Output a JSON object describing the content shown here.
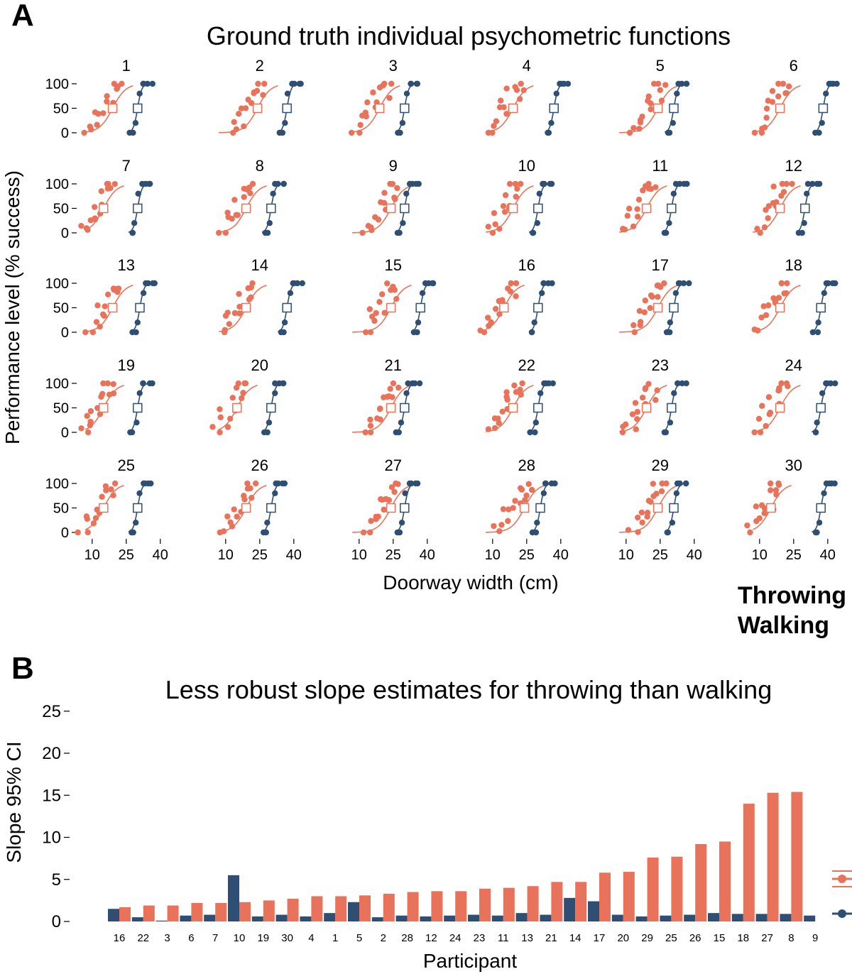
{
  "panel_a": {
    "letter": "A",
    "title": "Ground truth individual psychometric functions",
    "ylabel": "Performance level (% success)",
    "xlabel": "Doorway width (cm)",
    "x_ticks": [
      "10",
      "25",
      "40"
    ],
    "y_ticks": [
      "0",
      "50",
      "100"
    ],
    "participants": [
      "1",
      "2",
      "3",
      "4",
      "5",
      "6",
      "7",
      "8",
      "9",
      "10",
      "11",
      "12",
      "13",
      "14",
      "15",
      "16",
      "17",
      "18",
      "19",
      "20",
      "21",
      "22",
      "23",
      "24",
      "25",
      "26",
      "27",
      "28",
      "29",
      "30"
    ]
  },
  "legend": {
    "throwing": "Throwing",
    "walking": "Walking"
  },
  "colors": {
    "throwing": "#e8735a",
    "walking": "#2e4f73"
  },
  "panel_b": {
    "letter": "B",
    "title": "Less robust slope estimates for throwing than walking",
    "ylabel": "Slope 95% CI",
    "xlabel": "Participant",
    "y_ticks": [
      "0",
      "5",
      "10",
      "15",
      "20",
      "25"
    ]
  },
  "chart_data": [
    {
      "type": "scatter",
      "title": "Ground truth individual psychometric functions",
      "xlabel": "Doorway width (cm)",
      "ylabel": "Performance level (% success)",
      "xlim": [
        6,
        45
      ],
      "ylim": [
        0,
        100
      ],
      "x_ticks": [
        10,
        25,
        40
      ],
      "y_ticks": [
        0,
        50,
        100
      ],
      "series": [
        "Throwing",
        "Walking"
      ],
      "thresholds_50pct": [
        {
          "participant": "1",
          "throwing": 19,
          "walking": 30
        },
        {
          "participant": "2",
          "throwing": 24,
          "walking": 37
        },
        {
          "participant": "3",
          "throwing": 19,
          "walking": 30
        },
        {
          "participant": "4",
          "throwing": 19,
          "walking": 37
        },
        {
          "participant": "5",
          "throwing": 24,
          "walking": 31
        },
        {
          "participant": "6",
          "throwing": 19,
          "walking": 38
        },
        {
          "participant": "7",
          "throwing": 15,
          "walking": 30
        },
        {
          "participant": "8",
          "throwing": 19,
          "walking": 30
        },
        {
          "participant": "9",
          "throwing": 24,
          "walking": 30
        },
        {
          "participant": "10",
          "throwing": 19,
          "walking": 30
        },
        {
          "participant": "11",
          "throwing": 19,
          "walking": 30
        },
        {
          "participant": "12",
          "throwing": 19,
          "walking": 30
        },
        {
          "participant": "13",
          "throwing": 19,
          "walking": 31
        },
        {
          "participant": "14",
          "throwing": 19,
          "walking": 37
        },
        {
          "participant": "15",
          "throwing": 24,
          "walking": 37
        },
        {
          "participant": "16",
          "throwing": 15,
          "walking": 30
        },
        {
          "participant": "17",
          "throwing": 24,
          "walking": 31
        },
        {
          "participant": "18",
          "throwing": 19,
          "walking": 37
        },
        {
          "participant": "19",
          "throwing": 15,
          "walking": 30
        },
        {
          "participant": "20",
          "throwing": 15,
          "walking": 30
        },
        {
          "participant": "21",
          "throwing": 24,
          "walking": 30
        },
        {
          "participant": "22",
          "throwing": 19,
          "walking": 30
        },
        {
          "participant": "23",
          "throwing": 19,
          "walking": 30
        },
        {
          "participant": "24",
          "throwing": 19,
          "walking": 37
        },
        {
          "participant": "25",
          "throwing": 15,
          "walking": 30
        },
        {
          "participant": "26",
          "throwing": 19,
          "walking": 30
        },
        {
          "participant": "27",
          "throwing": 24,
          "walking": 30
        },
        {
          "participant": "28",
          "throwing": 24,
          "walking": 31
        },
        {
          "participant": "29",
          "throwing": 24,
          "walking": 31
        },
        {
          "participant": "30",
          "throwing": 15,
          "walking": 37
        }
      ],
      "observations_approx": {
        "throwing": [
          [
            8,
            0
          ],
          [
            10,
            0
          ],
          [
            11,
            20
          ],
          [
            12,
            40
          ],
          [
            13,
            20
          ],
          [
            14,
            40
          ],
          [
            15,
            60
          ],
          [
            16,
            50
          ],
          [
            17,
            80
          ],
          [
            18,
            60
          ],
          [
            19,
            100
          ],
          [
            20,
            80
          ],
          [
            21,
            100
          ],
          [
            22,
            80
          ],
          [
            23,
            100
          ]
        ],
        "walking": [
          [
            27,
            0
          ],
          [
            28,
            0
          ],
          [
            29,
            20
          ],
          [
            30,
            50
          ],
          [
            31,
            80
          ],
          [
            32,
            100
          ],
          [
            33,
            100
          ],
          [
            35,
            100
          ],
          [
            36,
            100
          ]
        ]
      }
    },
    {
      "type": "bar",
      "title": "Less robust slope estimates for throwing than walking",
      "xlabel": "Participant",
      "ylabel": "Slope 95% CI",
      "ylim": [
        0,
        25
      ],
      "categories": [
        "16",
        "22",
        "3",
        "6",
        "7",
        "10",
        "19",
        "30",
        "4",
        "1",
        "5",
        "2",
        "28",
        "12",
        "24",
        "23",
        "11",
        "13",
        "21",
        "14",
        "17",
        "20",
        "29",
        "25",
        "26",
        "15",
        "18",
        "27",
        "8",
        "9"
      ],
      "series": [
        {
          "name": "Walking",
          "values": [
            1.5,
            0.5,
            0.1,
            0.7,
            0.8,
            5.5,
            0.6,
            0.8,
            0.6,
            1.0,
            2.3,
            0.5,
            0.7,
            0.6,
            0.7,
            0.8,
            0.7,
            1.0,
            0.8,
            2.8,
            2.4,
            0.8,
            0.6,
            0.7,
            0.8,
            1.0,
            0.9,
            0.9,
            0.9,
            0.7
          ]
        },
        {
          "name": "Throwing",
          "values": [
            1.7,
            1.9,
            1.9,
            2.2,
            2.2,
            2.3,
            2.5,
            2.7,
            3.0,
            3.0,
            3.1,
            3.3,
            3.5,
            3.6,
            3.6,
            3.9,
            4.0,
            4.2,
            4.7,
            4.7,
            5.8,
            5.9,
            7.6,
            7.7,
            9.2,
            9.5,
            14.0,
            15.3,
            15.4,
            0
          ]
        }
      ]
    }
  ]
}
